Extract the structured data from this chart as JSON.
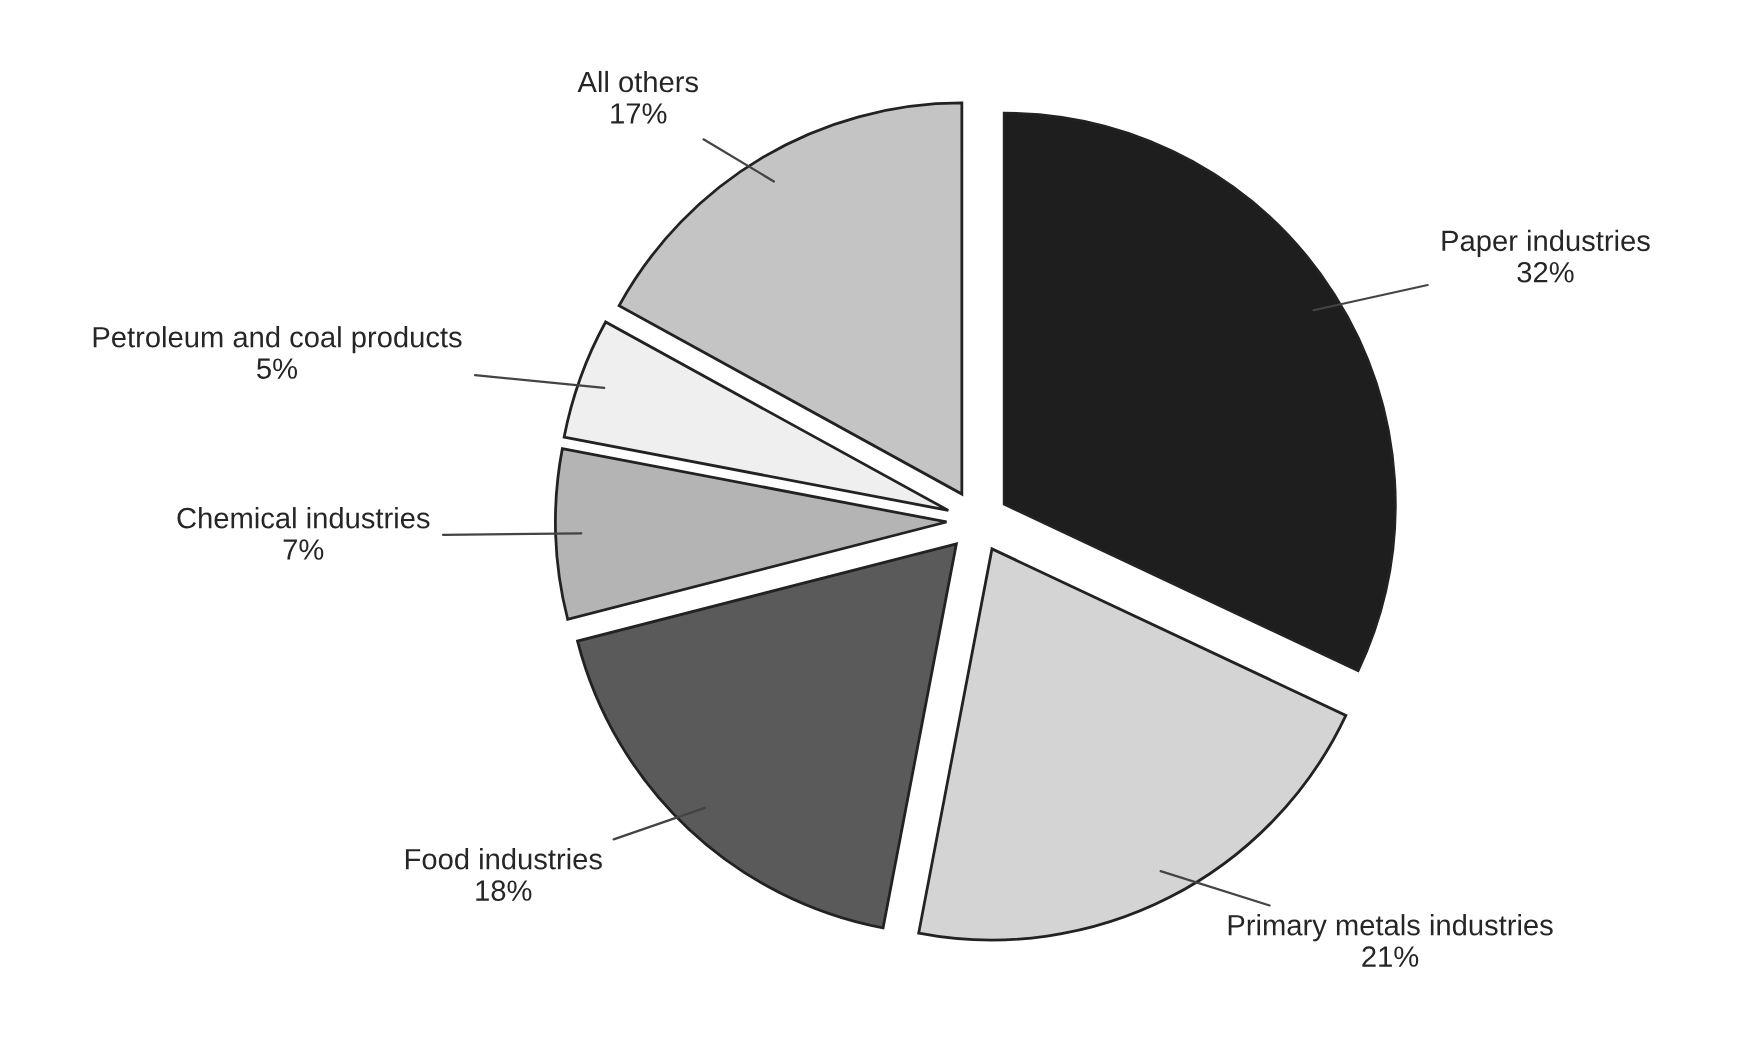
{
  "chart_data": {
    "type": "pie",
    "categories": [
      "Paper industries",
      "Primary metals industries",
      "Food industries",
      "Chemical industries",
      "Petroleum and coal products",
      "All others"
    ],
    "values": [
      32,
      21,
      18,
      7,
      5,
      17
    ],
    "value_labels": [
      "32%",
      "21%",
      "18%",
      "7%",
      "5%",
      "17%"
    ],
    "colors": [
      "#1e1e1e",
      "#d4d4d4",
      "#5a5a5a",
      "#b4b4b4",
      "#efefef",
      "#c4c4c4"
    ]
  }
}
